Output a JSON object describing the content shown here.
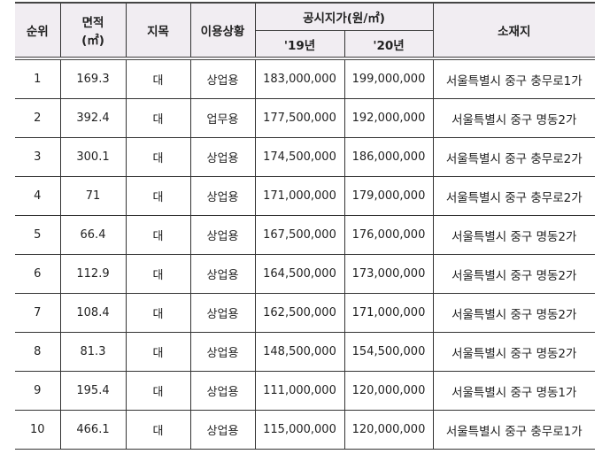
{
  "header": {
    "rank": "순위",
    "area": "면적",
    "area_unit": "(㎡)",
    "land_category": "지목",
    "usage": "이용상황",
    "price_group": "공시지가(원/㎡)",
    "year_2019": "'19년",
    "year_2020": "'20년",
    "location": "소재지"
  },
  "rows": [
    {
      "rank": "1",
      "area": "169.3",
      "category": "대",
      "usage": "상업용",
      "p19": "183,000,000",
      "p20": "199,000,000",
      "location": "서울특별시 중구 충무로1가"
    },
    {
      "rank": "2",
      "area": "392.4",
      "category": "대",
      "usage": "업무용",
      "p19": "177,500,000",
      "p20": "192,000,000",
      "location": "서울특별시 중구 명동2가"
    },
    {
      "rank": "3",
      "area": "300.1",
      "category": "대",
      "usage": "상업용",
      "p19": "174,500,000",
      "p20": "186,000,000",
      "location": "서울특별시 중구 충무로2가"
    },
    {
      "rank": "4",
      "area": "71",
      "category": "대",
      "usage": "상업용",
      "p19": "171,000,000",
      "p20": "179,000,000",
      "location": "서울특별시 중구 충무로2가"
    },
    {
      "rank": "5",
      "area": "66.4",
      "category": "대",
      "usage": "상업용",
      "p19": "167,500,000",
      "p20": "176,000,000",
      "location": "서울특별시 중구 명동2가"
    },
    {
      "rank": "6",
      "area": "112.9",
      "category": "대",
      "usage": "상업용",
      "p19": "164,500,000",
      "p20": "173,000,000",
      "location": "서울특별시 중구 명동2가"
    },
    {
      "rank": "7",
      "area": "108.4",
      "category": "대",
      "usage": "상업용",
      "p19": "162,500,000",
      "p20": "171,000,000",
      "location": "서울특별시 중구 명동2가"
    },
    {
      "rank": "8",
      "area": "81.3",
      "category": "대",
      "usage": "상업용",
      "p19": "148,500,000",
      "p20": "154,500,000",
      "location": "서울특별시 중구 명동2가"
    },
    {
      "rank": "9",
      "area": "195.4",
      "category": "대",
      "usage": "상업용",
      "p19": "111,000,000",
      "p20": "120,000,000",
      "location": "서울특별시 중구 명동1가"
    },
    {
      "rank": "10",
      "area": "466.1",
      "category": "대",
      "usage": "상업용",
      "p19": "115,000,000",
      "p20": "120,000,000",
      "location": "서울특별시 중구 충무로1가"
    }
  ]
}
